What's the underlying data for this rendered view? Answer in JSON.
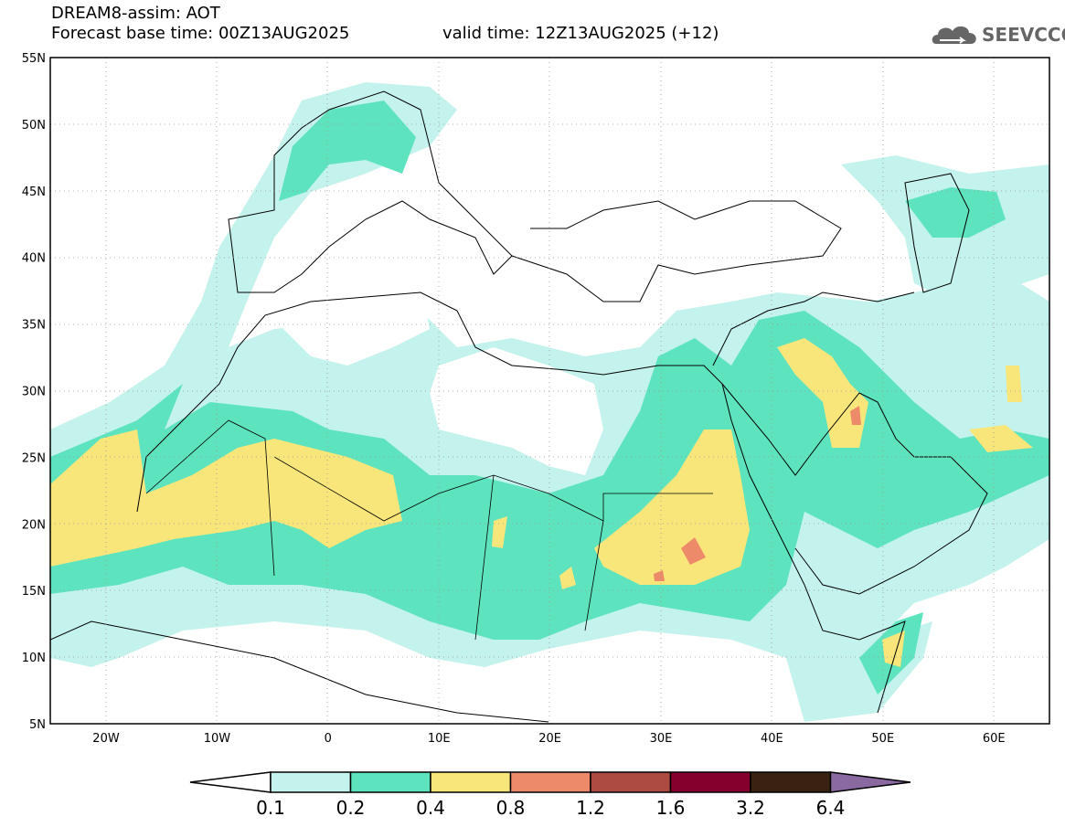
{
  "title": {
    "line1": "DREAM8-assim: AOT",
    "base_time": "Forecast base time: 00Z13AUG2025",
    "valid_time": "valid time: 12Z13AUG2025 (+12)"
  },
  "logo": {
    "text": "SEEVCCC",
    "icon": "cloud-icon"
  },
  "axes": {
    "lat_labels": [
      "55N",
      "50N",
      "45N",
      "40N",
      "35N",
      "30N",
      "25N",
      "20N",
      "15N",
      "10N",
      "5N"
    ],
    "lon_labels": [
      "20W",
      "10W",
      "0",
      "10E",
      "20E",
      "30E",
      "40E",
      "50E",
      "60E"
    ]
  },
  "colorbar": {
    "labels": [
      "0.1",
      "0.2",
      "0.4",
      "0.8",
      "1.2",
      "1.6",
      "3.2",
      "6.4"
    ],
    "colors": [
      "#ffffff",
      "#c4f2ec",
      "#5ee3bf",
      "#f8e67a",
      "#ec8a6a",
      "#ad4a42",
      "#86002e",
      "#3a2212",
      "#8a68a0"
    ]
  }
}
